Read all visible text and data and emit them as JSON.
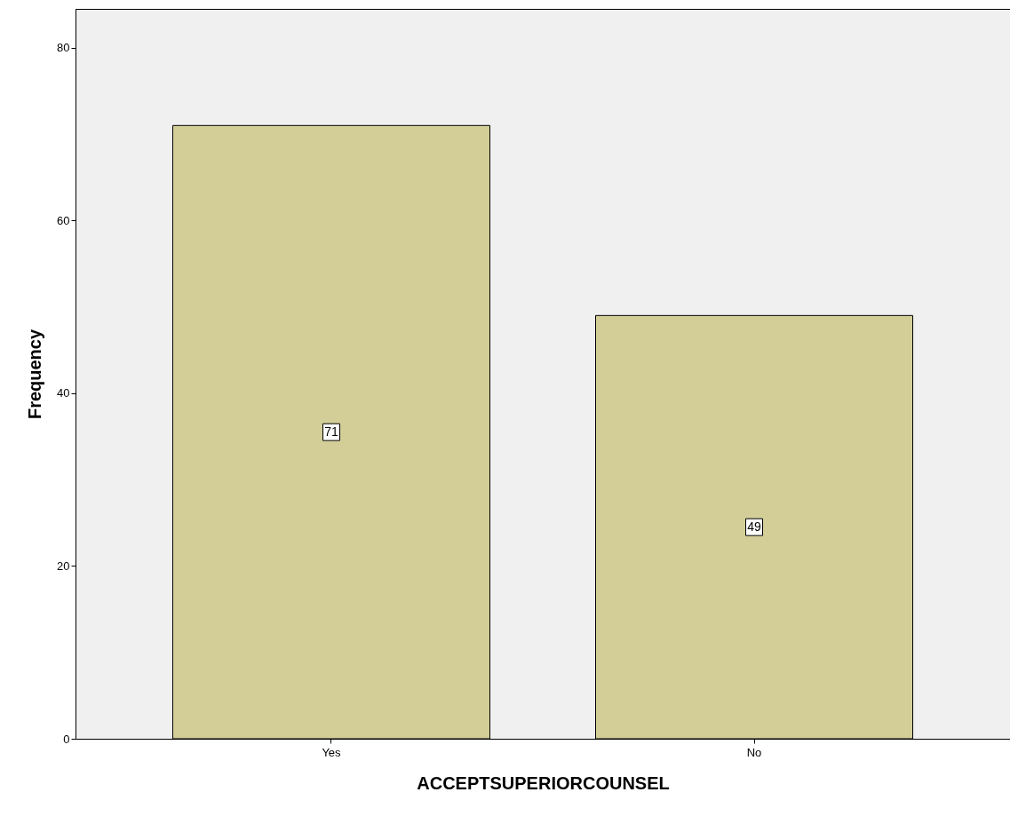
{
  "chart_data": {
    "type": "bar",
    "xlabel": "ACCEPTSUPERIORCOUNSEL",
    "ylabel": "Frequency",
    "categories": [
      "Yes",
      "No"
    ],
    "values": [
      71,
      49
    ],
    "color": "#d3ce97",
    "ylim": [
      0,
      84.5
    ],
    "yticks": [
      0,
      20,
      40,
      60,
      80
    ],
    "grid": false,
    "data_labels": true
  }
}
